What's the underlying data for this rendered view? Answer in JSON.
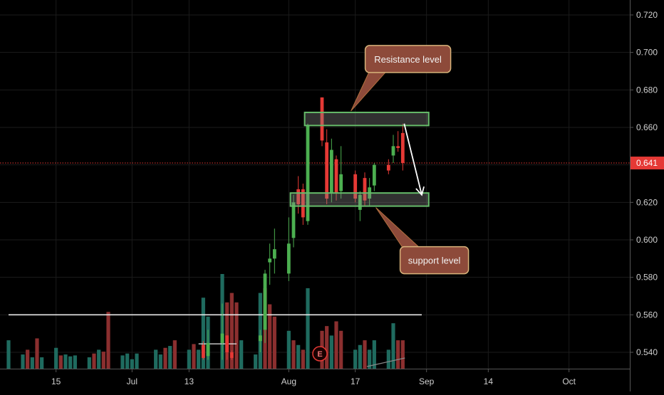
{
  "chart_data": {
    "type": "candlestick",
    "y_axis": {
      "position": "right",
      "range": [
        0.533,
        0.726
      ],
      "tick_labels": [
        "0.720",
        "0.700",
        "0.680",
        "0.660",
        "0.640",
        "0.620",
        "0.600",
        "0.580",
        "0.560",
        "0.540"
      ],
      "ticks": [
        0.72,
        0.7,
        0.68,
        0.66,
        0.64,
        0.62,
        0.6,
        0.58,
        0.56,
        0.54
      ]
    },
    "x_axis": {
      "tick_labels": [
        "15",
        "Jul",
        "13",
        "Aug",
        "17",
        "Sep",
        "14",
        "Oct"
      ],
      "ticks": [
        "2020-06-15",
        "2020-07-01",
        "2020-07-13",
        "2020-08-03",
        "2020-08-17",
        "2020-09-01",
        "2020-09-14",
        "2020-10-01"
      ],
      "range": [
        "2020-06-05",
        "2020-10-09"
      ]
    },
    "grid": true,
    "last_price": {
      "value": 0.641,
      "label": "0.641",
      "color": "#e53935"
    },
    "colors": {
      "up": "#4caf50",
      "down": "#e53935",
      "vol_up": "#1f6b5f",
      "vol_down": "#8b2f2f"
    },
    "candles": [
      {
        "date": "2020-07-16",
        "open": 0.544,
        "high": 0.546,
        "low": 0.536,
        "close": 0.537
      },
      {
        "date": "2020-07-17",
        "open": 0.538,
        "high": 0.552,
        "low": 0.536,
        "close": 0.545
      },
      {
        "date": "2020-07-20",
        "open": 0.545,
        "high": 0.566,
        "low": 0.536,
        "close": 0.55
      },
      {
        "date": "2020-07-21",
        "open": 0.549,
        "high": 0.549,
        "low": 0.536,
        "close": 0.54
      },
      {
        "date": "2020-07-22",
        "open": 0.54,
        "high": 0.541,
        "low": 0.536,
        "close": 0.537
      },
      {
        "date": "2020-07-28",
        "open": 0.546,
        "high": 0.552,
        "low": 0.54,
        "close": 0.549
      },
      {
        "date": "2020-07-29",
        "open": 0.552,
        "high": 0.584,
        "low": 0.545,
        "close": 0.582
      },
      {
        "date": "2020-07-30",
        "open": 0.588,
        "high": 0.598,
        "low": 0.576,
        "close": 0.59
      },
      {
        "date": "2020-07-31",
        "open": 0.59,
        "high": 0.606,
        "low": 0.582,
        "close": 0.595
      },
      {
        "date": "2020-08-03",
        "open": 0.582,
        "high": 0.612,
        "low": 0.578,
        "close": 0.598
      },
      {
        "date": "2020-08-04",
        "open": 0.601,
        "high": 0.624,
        "low": 0.596,
        "close": 0.62
      },
      {
        "date": "2020-08-05",
        "open": 0.627,
        "high": 0.634,
        "low": 0.614,
        "close": 0.619
      },
      {
        "date": "2020-08-06",
        "open": 0.627,
        "high": 0.63,
        "low": 0.608,
        "close": 0.612
      },
      {
        "date": "2020-08-07",
        "open": 0.61,
        "high": 0.662,
        "low": 0.608,
        "close": 0.661
      },
      {
        "date": "2020-08-10",
        "open": 0.676,
        "high": 0.676,
        "low": 0.65,
        "close": 0.653
      },
      {
        "date": "2020-08-11",
        "open": 0.652,
        "high": 0.659,
        "low": 0.619,
        "close": 0.622
      },
      {
        "date": "2020-08-12",
        "open": 0.625,
        "high": 0.654,
        "low": 0.62,
        "close": 0.648
      },
      {
        "date": "2020-08-13",
        "open": 0.643,
        "high": 0.645,
        "low": 0.621,
        "close": 0.625
      },
      {
        "date": "2020-08-14",
        "open": 0.626,
        "high": 0.65,
        "low": 0.622,
        "close": 0.635
      },
      {
        "date": "2020-08-17",
        "open": 0.635,
        "high": 0.637,
        "low": 0.62,
        "close": 0.622
      },
      {
        "date": "2020-08-18",
        "open": 0.616,
        "high": 0.626,
        "low": 0.61,
        "close": 0.624
      },
      {
        "date": "2020-08-19",
        "open": 0.633,
        "high": 0.636,
        "low": 0.618,
        "close": 0.621
      },
      {
        "date": "2020-08-20",
        "open": 0.622,
        "high": 0.633,
        "low": 0.618,
        "close": 0.628
      },
      {
        "date": "2020-08-21",
        "open": 0.629,
        "high": 0.641,
        "low": 0.626,
        "close": 0.64
      },
      {
        "date": "2020-08-24",
        "open": 0.64,
        "high": 0.643,
        "low": 0.635,
        "close": 0.637
      },
      {
        "date": "2020-08-25",
        "open": 0.645,
        "high": 0.656,
        "low": 0.641,
        "close": 0.65
      },
      {
        "date": "2020-08-26",
        "open": 0.65,
        "high": 0.658,
        "low": 0.647,
        "close": 0.649
      },
      {
        "date": "2020-08-27",
        "open": 0.657,
        "high": 0.662,
        "low": 0.637,
        "close": 0.641
      }
    ],
    "volume": [
      {
        "date": "2020-06-05",
        "vol": 0.3,
        "dir": "up"
      },
      {
        "date": "2020-06-08",
        "vol": 0.15,
        "dir": "up"
      },
      {
        "date": "2020-06-09",
        "vol": 0.2,
        "dir": "down"
      },
      {
        "date": "2020-06-10",
        "vol": 0.12,
        "dir": "up"
      },
      {
        "date": "2020-06-11",
        "vol": 0.32,
        "dir": "down"
      },
      {
        "date": "2020-06-12",
        "vol": 0.12,
        "dir": "up"
      },
      {
        "date": "2020-06-15",
        "vol": 0.22,
        "dir": "up"
      },
      {
        "date": "2020-06-16",
        "vol": 0.14,
        "dir": "down"
      },
      {
        "date": "2020-06-17",
        "vol": 0.15,
        "dir": "up"
      },
      {
        "date": "2020-06-18",
        "vol": 0.13,
        "dir": "up"
      },
      {
        "date": "2020-06-19",
        "vol": 0.14,
        "dir": "up"
      },
      {
        "date": "2020-06-22",
        "vol": 0.12,
        "dir": "up"
      },
      {
        "date": "2020-06-23",
        "vol": 0.16,
        "dir": "down"
      },
      {
        "date": "2020-06-24",
        "vol": 0.2,
        "dir": "up"
      },
      {
        "date": "2020-06-25",
        "vol": 0.18,
        "dir": "down"
      },
      {
        "date": "2020-06-26",
        "vol": 0.6,
        "dir": "down"
      },
      {
        "date": "2020-06-29",
        "vol": 0.14,
        "dir": "up"
      },
      {
        "date": "2020-06-30",
        "vol": 0.16,
        "dir": "up"
      },
      {
        "date": "2020-07-01",
        "vol": 0.1,
        "dir": "up"
      },
      {
        "date": "2020-07-02",
        "vol": 0.16,
        "dir": "up"
      },
      {
        "date": "2020-07-06",
        "vol": 0.2,
        "dir": "up"
      },
      {
        "date": "2020-07-07",
        "vol": 0.15,
        "dir": "up"
      },
      {
        "date": "2020-07-08",
        "vol": 0.22,
        "dir": "down"
      },
      {
        "date": "2020-07-09",
        "vol": 0.24,
        "dir": "up"
      },
      {
        "date": "2020-07-10",
        "vol": 0.3,
        "dir": "down"
      },
      {
        "date": "2020-07-13",
        "vol": 0.2,
        "dir": "up"
      },
      {
        "date": "2020-07-14",
        "vol": 0.26,
        "dir": "down"
      },
      {
        "date": "2020-07-15",
        "vol": 0.2,
        "dir": "up"
      },
      {
        "date": "2020-07-16",
        "vol": 0.75,
        "dir": "up"
      },
      {
        "date": "2020-07-17",
        "vol": 0.55,
        "dir": "up"
      },
      {
        "date": "2020-07-20",
        "vol": 1.0,
        "dir": "up"
      },
      {
        "date": "2020-07-21",
        "vol": 0.7,
        "dir": "down"
      },
      {
        "date": "2020-07-22",
        "vol": 0.8,
        "dir": "down"
      },
      {
        "date": "2020-07-23",
        "vol": 0.7,
        "dir": "down"
      },
      {
        "date": "2020-07-24",
        "vol": 0.3,
        "dir": "up"
      },
      {
        "date": "2020-07-27",
        "vol": 0.15,
        "dir": "up"
      },
      {
        "date": "2020-07-28",
        "vol": 0.8,
        "dir": "up"
      },
      {
        "date": "2020-07-29",
        "vol": 0.85,
        "dir": "down"
      },
      {
        "date": "2020-07-30",
        "vol": 0.68,
        "dir": "down"
      },
      {
        "date": "2020-07-31",
        "vol": 0.55,
        "dir": "down"
      },
      {
        "date": "2020-08-03",
        "vol": 0.4,
        "dir": "up"
      },
      {
        "date": "2020-08-04",
        "vol": 0.3,
        "dir": "down"
      },
      {
        "date": "2020-08-05",
        "vol": 0.25,
        "dir": "up"
      },
      {
        "date": "2020-08-06",
        "vol": 0.2,
        "dir": "down"
      },
      {
        "date": "2020-08-07",
        "vol": 0.85,
        "dir": "up"
      },
      {
        "date": "2020-08-10",
        "vol": 0.4,
        "dir": "down"
      },
      {
        "date": "2020-08-11",
        "vol": 0.45,
        "dir": "down"
      },
      {
        "date": "2020-08-12",
        "vol": 0.35,
        "dir": "up"
      },
      {
        "date": "2020-08-13",
        "vol": 0.5,
        "dir": "down"
      },
      {
        "date": "2020-08-14",
        "vol": 0.4,
        "dir": "down"
      },
      {
        "date": "2020-08-17",
        "vol": 0.2,
        "dir": "up"
      },
      {
        "date": "2020-08-18",
        "vol": 0.25,
        "dir": "up"
      },
      {
        "date": "2020-08-19",
        "vol": 0.3,
        "dir": "down"
      },
      {
        "date": "2020-08-20",
        "vol": 0.2,
        "dir": "up"
      },
      {
        "date": "2020-08-21",
        "vol": 0.3,
        "dir": "up"
      },
      {
        "date": "2020-08-24",
        "vol": 0.2,
        "dir": "up"
      },
      {
        "date": "2020-08-25",
        "vol": 0.48,
        "dir": "up"
      },
      {
        "date": "2020-08-26",
        "vol": 0.3,
        "dir": "down"
      },
      {
        "date": "2020-08-27",
        "vol": 0.3,
        "dir": "down"
      }
    ],
    "annotations": {
      "resistance_label": "Resistance level",
      "support_label": "support level",
      "resistance_zone": {
        "from": "2020-08-07",
        "to": "2020-08-27",
        "y_low": 0.661,
        "y_high": 0.668
      },
      "support_zone": {
        "from": "2020-08-04",
        "to": "2020-08-27",
        "y_low": 0.618,
        "y_high": 0.625
      },
      "horizontal_line": {
        "y": 0.56,
        "from": "2020-06-05",
        "to": "2020-08-31"
      },
      "small_line": {
        "y": 0.5445,
        "from": "2020-07-15",
        "to": "2020-07-23"
      },
      "arrow": {
        "from_date": "2020-08-27",
        "from_y": 0.662,
        "to_date": "2020-08-31",
        "to_y": 0.624
      },
      "earnings_marker": "E",
      "earnings_date": "2020-08-10"
    }
  }
}
